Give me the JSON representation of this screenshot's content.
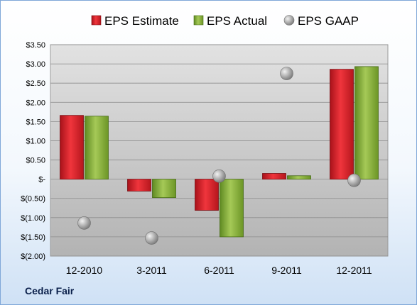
{
  "company": "Cedar Fair",
  "chart_data": {
    "type": "bar",
    "categories": [
      "12-2010",
      "3-2011",
      "6-2011",
      "9-2011",
      "12-2011"
    ],
    "series": [
      {
        "name": "EPS Estimate",
        "kind": "bar",
        "color": "#e0232b",
        "values": [
          1.66,
          -0.31,
          -0.81,
          0.15,
          2.86
        ]
      },
      {
        "name": "EPS Actual",
        "kind": "bar",
        "color": "#8fb440",
        "values": [
          1.64,
          -0.48,
          -1.5,
          0.09,
          2.93
        ]
      },
      {
        "name": "EPS GAAP",
        "kind": "marker",
        "color": "#b0b0b0",
        "values": [
          -1.14,
          -1.53,
          0.08,
          2.75,
          -0.03
        ]
      }
    ],
    "y_ticks": [
      {
        "value": 3.5,
        "label": "$3.50"
      },
      {
        "value": 3.0,
        "label": "$3.00"
      },
      {
        "value": 2.5,
        "label": "$2.50"
      },
      {
        "value": 2.0,
        "label": "$2.00"
      },
      {
        "value": 1.5,
        "label": "$1.50"
      },
      {
        "value": 1.0,
        "label": "$1.00"
      },
      {
        "value": 0.5,
        "label": "$0.50"
      },
      {
        "value": 0,
        "label": "$-"
      },
      {
        "value": -0.5,
        "label": "$(0.50)"
      },
      {
        "value": -1.0,
        "label": "$(1.00)"
      },
      {
        "value": -1.5,
        "label": "$(1.50)"
      },
      {
        "value": -2.0,
        "label": "$(2.00)"
      }
    ],
    "ylim": [
      -2.0,
      3.5
    ],
    "grid": true,
    "legend_position": "top"
  }
}
